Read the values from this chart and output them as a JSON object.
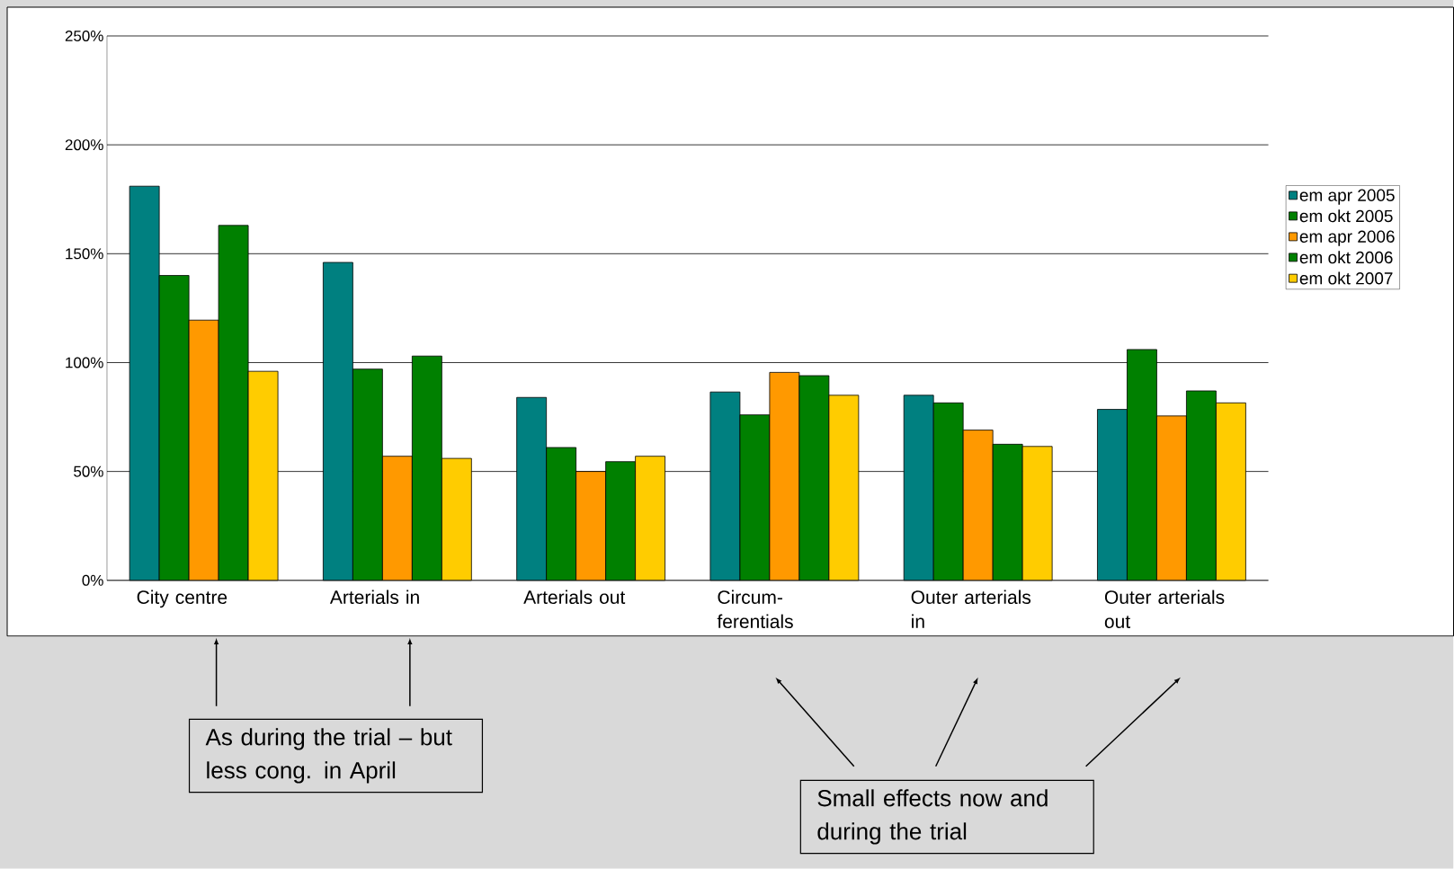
{
  "chart_data": {
    "type": "bar",
    "categories": [
      "City centre",
      "Arterials in",
      "Arterials out",
      "Circum-ferentials",
      "Outer arterials in",
      "Outer arterials out"
    ],
    "series": [
      {
        "name": "em apr 2005",
        "color": "#008080",
        "values": [
          181,
          146,
          84,
          86.5,
          85,
          78.5
        ]
      },
      {
        "name": "em okt 2005",
        "color": "#008000",
        "values": [
          140,
          97,
          61,
          76,
          81.5,
          106
        ]
      },
      {
        "name": "em apr 2006",
        "color": "#ff9900",
        "values": [
          119.5,
          57,
          50,
          95.5,
          69,
          75.5
        ]
      },
      {
        "name": "em okt 2006",
        "color": "#008000",
        "values": [
          163,
          103,
          54.5,
          94,
          62.5,
          87
        ]
      },
      {
        "name": "em okt 2007",
        "color": "#ffcc00",
        "values": [
          96,
          56,
          57,
          85,
          61.5,
          81.5
        ]
      }
    ],
    "ylim": [
      0,
      250
    ],
    "yticks": [
      {
        "value": 0,
        "label": "0%"
      },
      {
        "value": 50,
        "label": "50%"
      },
      {
        "value": 100,
        "label": "100%"
      },
      {
        "value": 150,
        "label": "150%"
      },
      {
        "value": 200,
        "label": "200%"
      },
      {
        "value": 250,
        "label": "250%"
      }
    ],
    "grid": "y",
    "legend": "right",
    "annotations": [
      "As during the trial – but less cong. in April",
      "Small effects now and during the trial"
    ]
  }
}
